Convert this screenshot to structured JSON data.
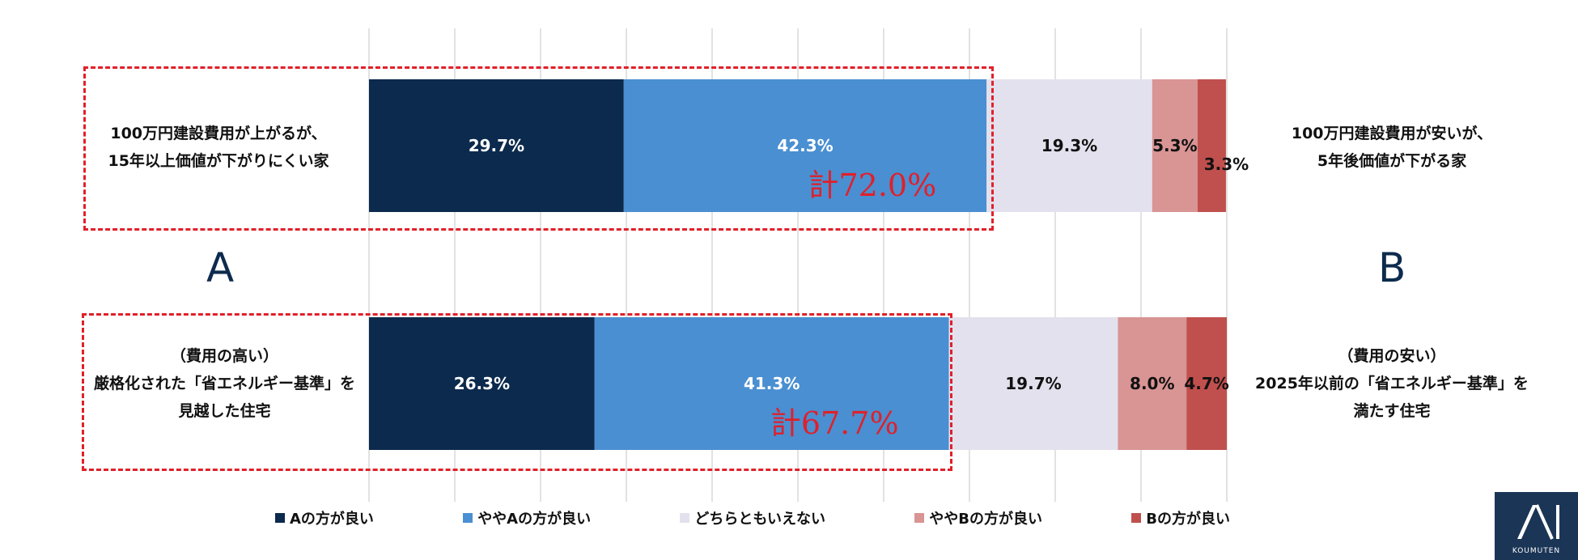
{
  "chart_data": {
    "type": "bar",
    "orientation": "horizontal",
    "stacked": true,
    "grid": true,
    "legend_position": "bottom",
    "left_letter": "A",
    "right_letter": "B",
    "rows": [
      {
        "left_label": [
          "100万円建設費用が上がるが、",
          "15年以上価値が下がりにくい家"
        ],
        "right_label": [
          "100万円建設費用が安いが、",
          "5年後価値が下がる家"
        ],
        "total_label": "計72.0%"
      },
      {
        "left_label": [
          "（費用の高い）",
          "厳格化された「省エネルギー基準」を",
          "見越した住宅"
        ],
        "right_label": [
          "（費用の安い）",
          "2025年以前の「省エネルギー基準」を",
          "満たす住宅"
        ],
        "total_label": "計67.7%"
      }
    ],
    "series": [
      {
        "name": "Aの方が良い",
        "color": "#0b2a4d",
        "values": [
          29.7,
          26.3
        ],
        "labels": [
          "29.7%",
          "26.3%"
        ],
        "label_color": "#ffffff"
      },
      {
        "name": "ややAの方が良い",
        "color": "#4a8fd1",
        "values": [
          42.3,
          41.3
        ],
        "labels": [
          "42.3%",
          "41.3%"
        ],
        "label_color": "#ffffff"
      },
      {
        "name": "どちらともいえない",
        "color": "#e4e1ee",
        "values": [
          19.3,
          19.7
        ],
        "labels": [
          "19.3%",
          "19.7%"
        ],
        "label_color": "#111111"
      },
      {
        "name": "ややBの方が良い",
        "color": "#d99494",
        "values": [
          5.3,
          8.0
        ],
        "labels": [
          "5.3%",
          "8.0%"
        ],
        "label_color": "#111111"
      },
      {
        "name": "Bの方が良い",
        "color": "#c0504d",
        "values": [
          3.3,
          4.7
        ],
        "labels": [
          "3.3%",
          "4.7%"
        ],
        "label_color": "#111111"
      }
    ],
    "total_color": "#e0202a"
  },
  "logo": {
    "mark": "AI",
    "subtext": "KOUMUTEN"
  }
}
